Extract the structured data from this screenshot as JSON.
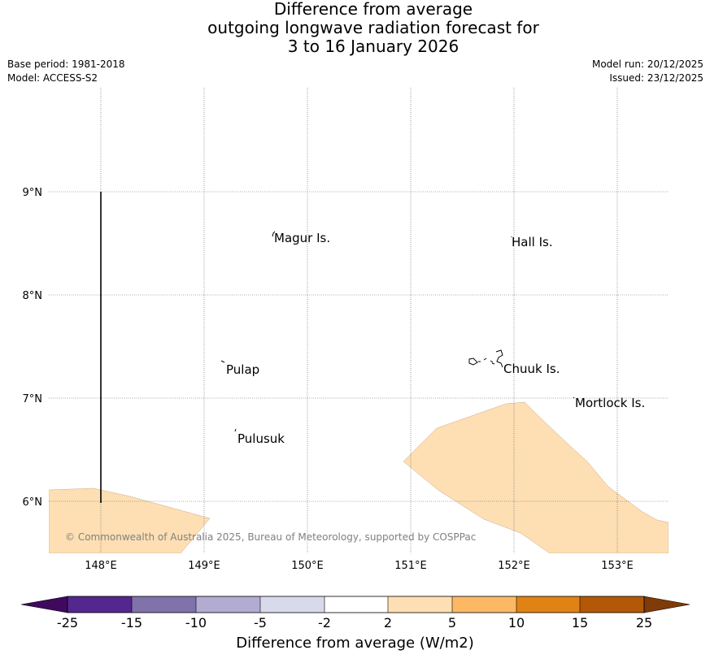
{
  "title": {
    "line1": "Difference from average",
    "line2": "outgoing longwave radiation forecast for",
    "line3": "3 to 16 January 2026"
  },
  "info": {
    "base_period": "Base period: 1981-2018",
    "model": "Model: ACCESS-S2",
    "model_run": "Model run: 20/12/2025",
    "issued": "Issued: 23/12/2025"
  },
  "map": {
    "lon_ticks": [
      "148°E",
      "149°E",
      "150°E",
      "151°E",
      "152°E",
      "153°E"
    ],
    "lat_ticks": [
      "9°N",
      "8°N",
      "7°N",
      "6°N"
    ],
    "places": [
      "Magur Is.",
      "Hall Is.",
      "Pulap",
      "Chuuk Is.",
      "Mortlock Is.",
      "Pulusuk"
    ],
    "credit": "© Commonwealth of Australia 2025, Bureau of Meteorology, supported by COSPPac",
    "anomaly_fill_color": "#fddfb3"
  },
  "colorbar": {
    "label": "Difference from average (W/m2)",
    "ticks": [
      "-25",
      "-15",
      "-10",
      "-5",
      "-2",
      "2",
      "5",
      "10",
      "15",
      "25"
    ],
    "colors": [
      "#3f0a5e",
      "#54278f",
      "#8073ac",
      "#b2abd2",
      "#d8daeb",
      "#ffffff",
      "#fddfb3",
      "#fdb863",
      "#e08214",
      "#b35806",
      "#7f3b08"
    ]
  }
}
